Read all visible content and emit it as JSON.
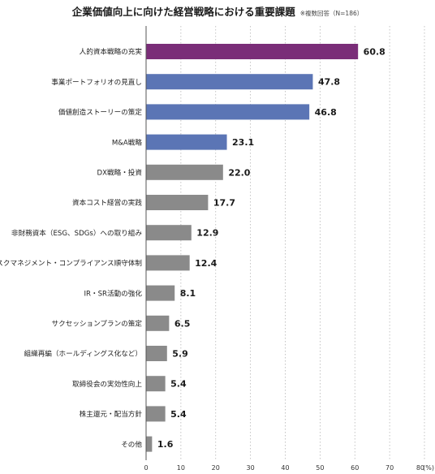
{
  "title": "企業価値向上に向けた経営戦略における重要課題",
  "note": "※複数回答（N=186）",
  "colors": {
    "purple": "#7a2d78",
    "blue": "#5b75b5",
    "gray": "#8a8a8a"
  },
  "chart_data": {
    "type": "bar",
    "orientation": "horizontal",
    "title": "企業価値向上に向けた経営戦略における重要課題",
    "xlabel": "",
    "ylabel": "",
    "xlim": [
      0,
      80
    ],
    "x_ticks": [
      "0",
      "10",
      "20",
      "30",
      "40",
      "50",
      "60",
      "70",
      "80"
    ],
    "x_unit": "(%)",
    "grid": "vertical dotted",
    "categories": [
      "人的資本戦略の充実",
      "事業ポートフォリオの見直し",
      "価値創造ストーリーの策定",
      "M&A戦略",
      "DX戦略・投資",
      "資本コスト経営の実践",
      "非財務資本（ESG、SDGs）への取り組み",
      "リスクマネジメント・コンプライアンス順守体制",
      "IR・SR活動の強化",
      "サクセッションプランの策定",
      "組織再編（ホールディングス化など）",
      "取締役会の実効性向上",
      "株主還元・配当方針",
      "その他"
    ],
    "values": [
      60.8,
      47.8,
      46.8,
      23.1,
      22.0,
      17.7,
      12.9,
      12.4,
      8.1,
      6.5,
      5.9,
      5.4,
      5.4,
      1.6
    ],
    "value_labels": [
      "60.8",
      "47.8",
      "46.8",
      "23.1",
      "22.0",
      "17.7",
      "12.9",
      "12.4",
      "8.1",
      "6.5",
      "5.9",
      "5.4",
      "5.4",
      "1.6"
    ],
    "bar_colors": [
      "purple",
      "blue",
      "blue",
      "blue",
      "gray",
      "gray",
      "gray",
      "gray",
      "gray",
      "gray",
      "gray",
      "gray",
      "gray",
      "gray"
    ]
  }
}
